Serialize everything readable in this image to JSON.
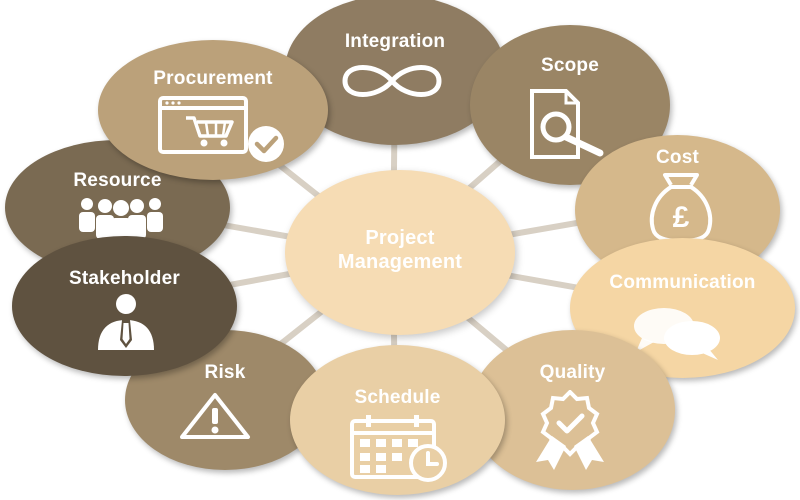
{
  "center": {
    "line1": "Project",
    "line2": "Management",
    "color": "#f6dcb4"
  },
  "areas": {
    "integration": {
      "label": "Integration",
      "icon": "infinity-icon",
      "color": "#8f7c62"
    },
    "scope": {
      "label": "Scope",
      "icon": "document-search-icon",
      "color": "#9a8565"
    },
    "cost": {
      "label": "Cost",
      "icon": "money-bag-pound-icon",
      "color": "#d5b88b"
    },
    "communication": {
      "label": "Communication",
      "icon": "chat-bubbles-icon",
      "color": "#f5d6a4"
    },
    "quality": {
      "label": "Quality",
      "icon": "award-ribbon-icon",
      "color": "#dcc096"
    },
    "schedule": {
      "label": "Schedule",
      "icon": "calendar-clock-icon",
      "color": "#e9cfa5"
    },
    "risk": {
      "label": "Risk",
      "icon": "warning-icon",
      "color": "#9e8969"
    },
    "stakeholder": {
      "label": "Stakeholder",
      "icon": "businessman-icon",
      "color": "#5f5240"
    },
    "resource": {
      "label": "Resource",
      "icon": "people-group-icon",
      "color": "#7a6a52"
    },
    "procurement": {
      "label": "Procurement",
      "icon": "shopping-cart-check-icon",
      "color": "#bba17a"
    }
  },
  "spoke_color": "#d8d0c4"
}
